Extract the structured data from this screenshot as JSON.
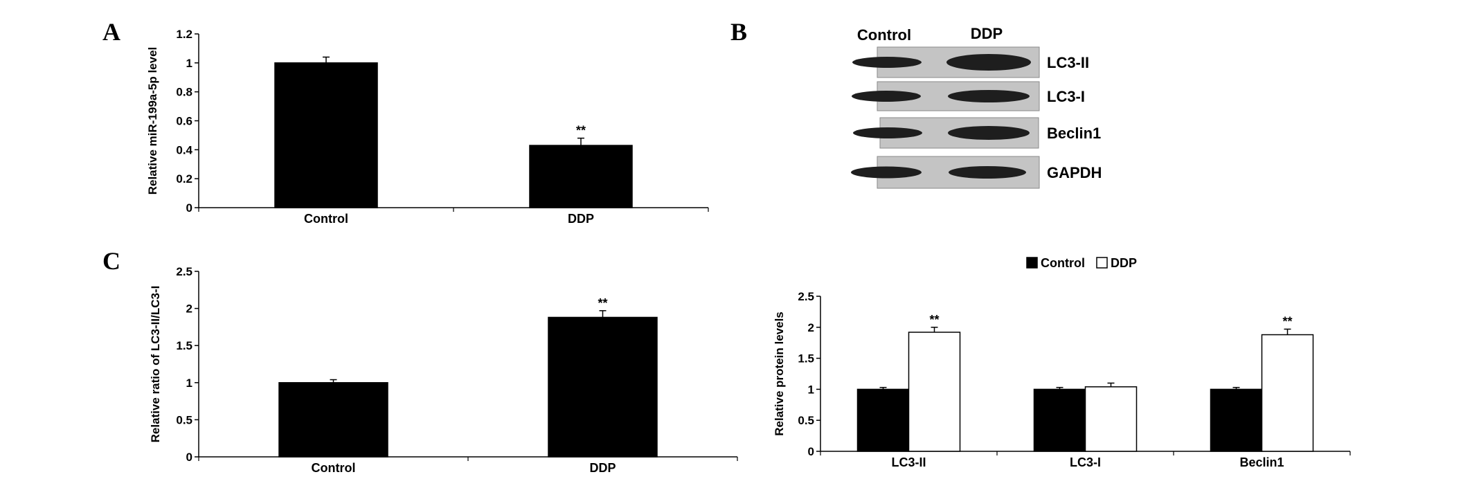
{
  "panels": {
    "a": "A",
    "b": "B",
    "c": "C"
  },
  "colors": {
    "control": "#000000",
    "ddp": "#ffffff",
    "axis": "#000000",
    "membrane": "#c4c4c4",
    "band": "#1e1e1e"
  },
  "blot": {
    "columns": [
      "Control",
      "DDP"
    ],
    "rows": [
      "LC3-II",
      "LC3-I",
      "Beclin1",
      "GAPDH"
    ]
  },
  "legend": {
    "items": [
      "Control",
      "DDP"
    ]
  },
  "chart_data": [
    {
      "id": "panel-a",
      "type": "bar",
      "title": "",
      "xlabel": "",
      "ylabel": "Relative miR-199a-5p level",
      "categories": [
        "Control",
        "DDP"
      ],
      "values": [
        1.0,
        0.43
      ],
      "errors": [
        0.04,
        0.05
      ],
      "significance": [
        "",
        "**"
      ],
      "ylim": [
        0,
        1.2
      ],
      "yticks": [
        "0",
        "0.2",
        "0.4",
        "0.6",
        "0.8",
        "1",
        "1.2"
      ],
      "grid": false
    },
    {
      "id": "panel-c-ratio",
      "type": "bar",
      "title": "",
      "xlabel": "",
      "ylabel": "Relative ratio of LC3-II/LC3-I",
      "categories": [
        "Control",
        "DDP"
      ],
      "values": [
        1.0,
        1.88
      ],
      "errors": [
        0.04,
        0.09
      ],
      "significance": [
        "",
        "**"
      ],
      "ylim": [
        0,
        2.5
      ],
      "yticks": [
        "0",
        "0.5",
        "1",
        "1.5",
        "2",
        "2.5"
      ],
      "grid": false
    },
    {
      "id": "panel-c-protein",
      "type": "bar",
      "title": "",
      "xlabel": "",
      "ylabel": "Relative protein levels",
      "categories": [
        "LC3-II",
        "LC3-I",
        "Beclin1"
      ],
      "series": [
        {
          "name": "Control",
          "values": [
            1.0,
            1.0,
            1.0
          ],
          "errors": [
            0.03,
            0.03,
            0.03
          ],
          "significance": [
            "",
            "",
            ""
          ]
        },
        {
          "name": "DDP",
          "values": [
            1.92,
            1.04,
            1.88
          ],
          "errors": [
            0.08,
            0.06,
            0.09
          ],
          "significance": [
            "**",
            "",
            "**"
          ]
        }
      ],
      "ylim": [
        0,
        2.5
      ],
      "yticks": [
        "0",
        "0.5",
        "1",
        "1.5",
        "2",
        "2.5"
      ],
      "legend_position": "top",
      "grid": false
    }
  ]
}
